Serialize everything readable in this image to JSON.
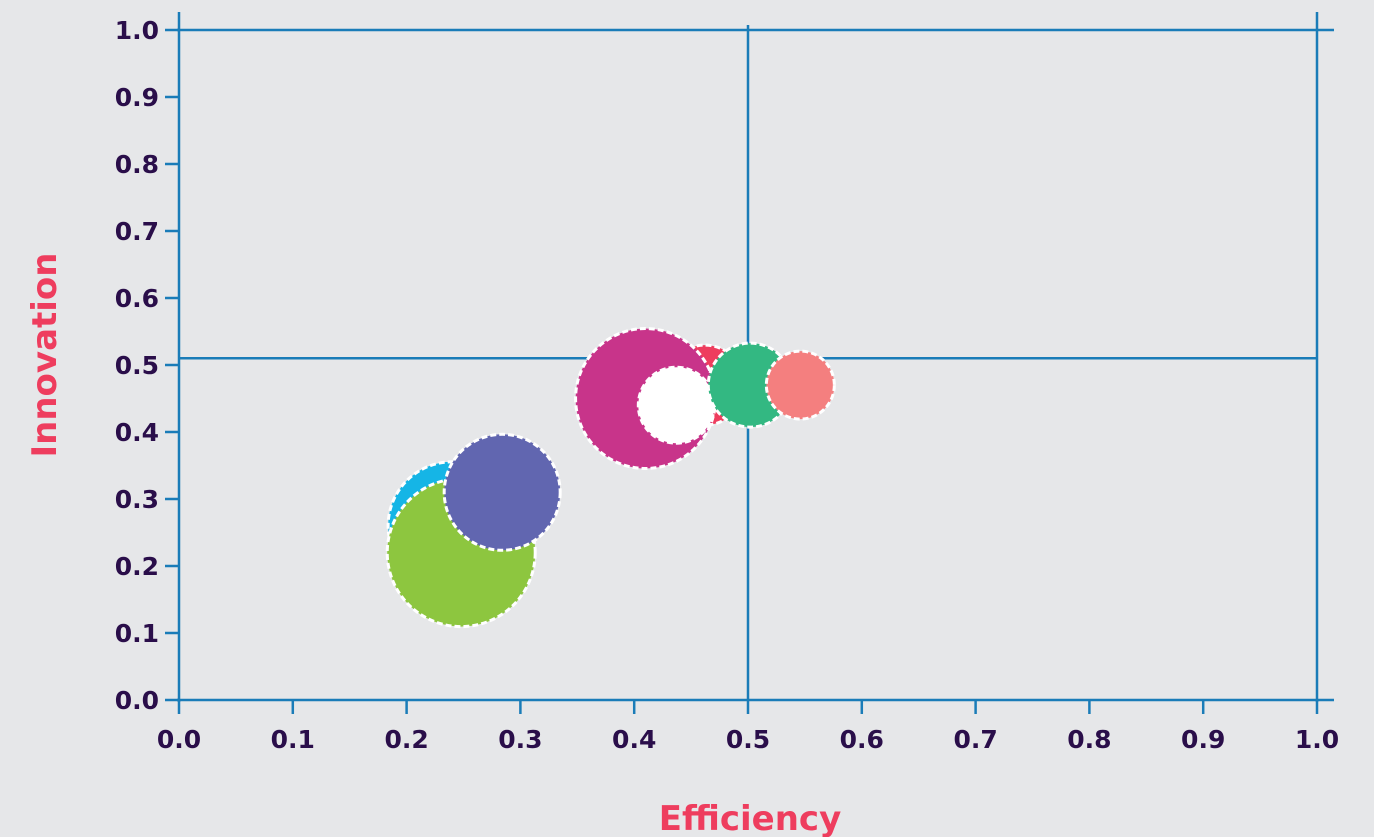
{
  "chart_data": {
    "type": "bubble",
    "title": "",
    "xlabel": "Efficiency",
    "ylabel": "Innovation",
    "xlim": [
      0,
      1
    ],
    "ylim": [
      0,
      1
    ],
    "x_ticks": [
      "0.0",
      "0.1",
      "0.2",
      "0.3",
      "0.4",
      "0.5",
      "0.6",
      "0.7",
      "0.8",
      "0.9",
      "1.0"
    ],
    "y_ticks": [
      "0.0",
      "0.1",
      "0.2",
      "0.3",
      "0.4",
      "0.5",
      "0.6",
      "0.7",
      "0.8",
      "0.9",
      "1.0"
    ],
    "reference_lines": {
      "x": 0.5,
      "y": 0.51
    },
    "grid": false,
    "points": [
      {
        "x": 0.24,
        "y": 0.26,
        "size": 0.32,
        "color": "#15b5e6"
      },
      {
        "x": 0.248,
        "y": 0.22,
        "size": 0.37,
        "color": "#8dc63f"
      },
      {
        "x": 0.284,
        "y": 0.31,
        "size": 0.29,
        "color": "#6166b0"
      },
      {
        "x": 0.462,
        "y": 0.47,
        "size": 0.2,
        "color": "#ee3d5e"
      },
      {
        "x": 0.41,
        "y": 0.45,
        "size": 0.35,
        "color": "#c8348a"
      },
      {
        "x": 0.437,
        "y": 0.44,
        "size": 0.19,
        "color": "#ffffff"
      },
      {
        "x": 0.502,
        "y": 0.47,
        "size": 0.21,
        "color": "#33b882"
      },
      {
        "x": 0.546,
        "y": 0.47,
        "size": 0.17,
        "color": "#f47f7f"
      }
    ]
  },
  "colors": {
    "axis": "#1a7cb8",
    "tick_label": "#2a0e4a",
    "axis_title": "#ee3d5e",
    "background": "#e6e7e9"
  }
}
